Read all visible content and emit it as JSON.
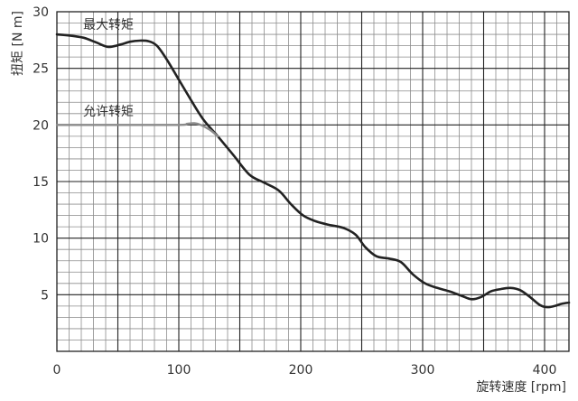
{
  "chart_data": {
    "type": "line",
    "xlabel": "旋转速度 [rpm]",
    "ylabel": "扭矩 [N m]",
    "xlim": [
      0,
      420
    ],
    "ylim": [
      0,
      30
    ],
    "x_ticks": [
      0,
      100,
      200,
      300,
      400
    ],
    "y_ticks": [
      5,
      10,
      15,
      20,
      25,
      30
    ],
    "grid": true,
    "series": [
      {
        "name": "最大转矩",
        "color": "#222222",
        "x": [
          0,
          10,
          22,
          32,
          42,
          52,
          60,
          68,
          75,
          82,
          90,
          100,
          110,
          120,
          132,
          145,
          158,
          170,
          182,
          192,
          202,
          212,
          222,
          235,
          245,
          253,
          262,
          272,
          282,
          292,
          302,
          312,
          322,
          332,
          340,
          348,
          356,
          364,
          372,
          380,
          388,
          396,
          402,
          408,
          414,
          420
        ],
        "y": [
          28,
          27.9,
          27.7,
          27.3,
          26.9,
          27.1,
          27.35,
          27.45,
          27.4,
          27.0,
          25.8,
          24.0,
          22.2,
          20.5,
          19.0,
          17.3,
          15.6,
          14.9,
          14.2,
          13.0,
          12.0,
          11.5,
          11.2,
          10.9,
          10.3,
          9.2,
          8.4,
          8.2,
          7.9,
          6.8,
          6.0,
          5.6,
          5.3,
          4.9,
          4.6,
          4.8,
          5.3,
          5.5,
          5.6,
          5.4,
          4.8,
          4.1,
          3.9,
          4.0,
          4.2,
          4.3
        ]
      },
      {
        "name": "允许转矩",
        "color": "#8a8a8a",
        "x": [
          0,
          50,
          100,
          107,
          113,
          118,
          125,
          132
        ],
        "y": [
          20,
          20,
          20,
          20.1,
          20.15,
          20.0,
          19.6,
          19.0
        ]
      }
    ]
  }
}
